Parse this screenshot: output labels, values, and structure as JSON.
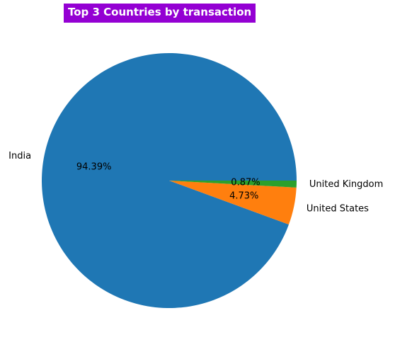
{
  "chart_data": {
    "type": "pie",
    "title": "Top 3 Countries by transaction",
    "slices": [
      {
        "label": "India",
        "value": 94.39,
        "pct_label": "94.39%",
        "color": "#1f77b4"
      },
      {
        "label": "United States",
        "value": 4.73,
        "pct_label": "4.73%",
        "color": "#ff7f0e"
      },
      {
        "label": "United Kingdom",
        "value": 0.87,
        "pct_label": "0.87%",
        "color": "#2ca02c"
      }
    ],
    "title_background": "#9400d3",
    "title_color": "#ffffff"
  }
}
